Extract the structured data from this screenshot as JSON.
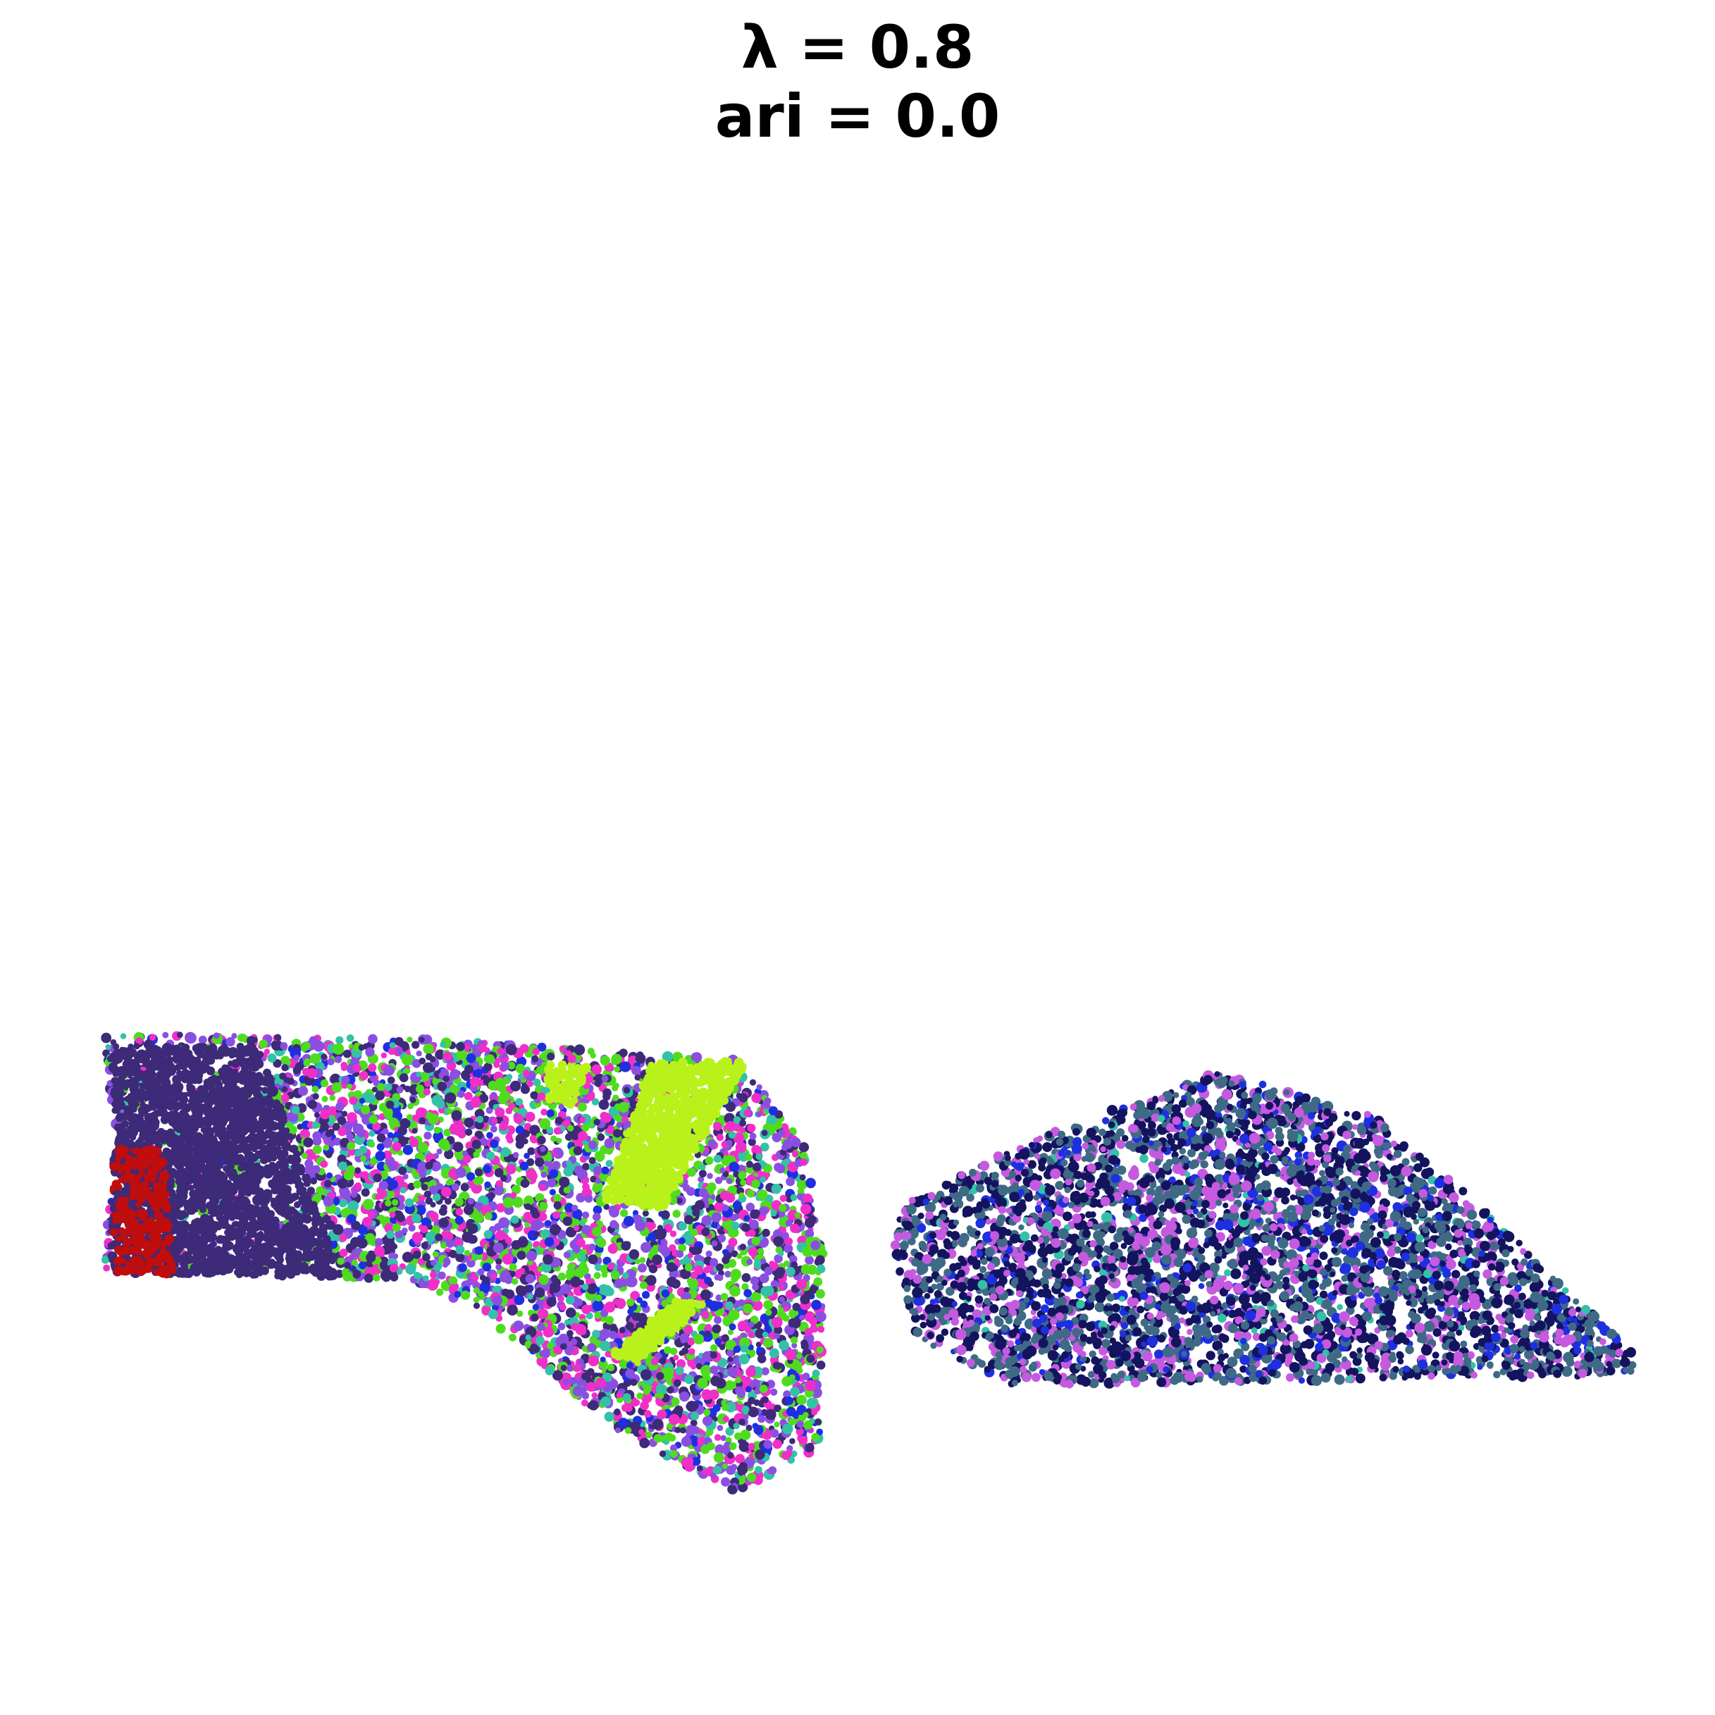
{
  "chart_data": {
    "type": "scatter",
    "title": "λ = 0.8",
    "subtitle": "ari = 0.0",
    "xlabel": "",
    "ylabel": "",
    "axes_visible": false,
    "grid": false,
    "legend": "none",
    "palette": {
      "dark-purple": "#3d2a78",
      "magenta": "#f02fc8",
      "green": "#4fdc1f",
      "violet": "#8a4fe0",
      "teal": "#33c2a8",
      "blue": "#1e2fe0",
      "lime": "#b8f21a",
      "red": "#c00d0d",
      "navy": "#14135e",
      "slate": "#3f6a86",
      "orchid": "#c55ae0"
    },
    "series": [
      {
        "label": "left tissue section",
        "outline": [
          [
            0.06,
            0.605
          ],
          [
            0.085,
            0.603
          ],
          [
            0.25,
            0.606
          ],
          [
            0.43,
            0.617
          ],
          [
            0.47,
            0.67
          ],
          [
            0.48,
            0.73
          ],
          [
            0.478,
            0.845
          ],
          [
            0.43,
            0.87
          ],
          [
            0.36,
            0.835
          ],
          [
            0.28,
            0.765
          ],
          [
            0.24,
            0.746
          ],
          [
            0.06,
            0.742
          ],
          [
            0.068,
            0.66
          ]
        ],
        "clusters": [
          {
            "color": "dark-purple",
            "weight": 0.18
          },
          {
            "color": "magenta",
            "weight": 0.17
          },
          {
            "color": "green",
            "weight": 0.18
          },
          {
            "color": "violet",
            "weight": 0.18
          },
          {
            "color": "teal",
            "weight": 0.08
          },
          {
            "color": "blue",
            "weight": 0.06
          }
        ],
        "patches": [
          {
            "color": "dark-purple",
            "region": [
              [
                0.065,
                0.61
              ],
              [
                0.15,
                0.61
              ],
              [
                0.2,
                0.745
              ],
              [
                0.065,
                0.745
              ]
            ]
          },
          {
            "color": "red",
            "region": [
              [
                0.066,
                0.67
              ],
              [
                0.095,
                0.67
              ],
              [
                0.102,
                0.748
              ],
              [
                0.066,
                0.748
              ]
            ]
          },
          {
            "color": "lime",
            "region": [
              [
                0.38,
                0.62
              ],
              [
                0.436,
                0.618
              ],
              [
                0.386,
                0.705
              ],
              [
                0.352,
                0.7
              ]
            ]
          },
          {
            "color": "lime",
            "region": [
              [
                0.32,
                0.62
              ],
              [
                0.345,
                0.622
              ],
              [
                0.335,
                0.645
              ],
              [
                0.318,
                0.64
              ]
            ]
          },
          {
            "color": "lime",
            "region": [
              [
                0.395,
                0.758
              ],
              [
                0.41,
                0.76
              ],
              [
                0.372,
                0.795
              ],
              [
                0.356,
                0.79
              ]
            ]
          }
        ]
      },
      {
        "label": "right tissue section",
        "outline": [
          [
            0.522,
            0.705
          ],
          [
            0.6,
            0.665
          ],
          [
            0.71,
            0.625
          ],
          [
            0.8,
            0.65
          ],
          [
            0.86,
            0.7
          ],
          [
            0.952,
            0.788
          ],
          [
            0.952,
            0.802
          ],
          [
            0.59,
            0.808
          ],
          [
            0.535,
            0.78
          ],
          [
            0.522,
            0.74
          ]
        ],
        "clusters": [
          {
            "color": "navy",
            "weight": 0.38
          },
          {
            "color": "slate",
            "weight": 0.3
          },
          {
            "color": "orchid",
            "weight": 0.2
          },
          {
            "color": "blue",
            "weight": 0.09
          },
          {
            "color": "teal",
            "weight": 0.03
          }
        ],
        "patches": []
      }
    ]
  }
}
